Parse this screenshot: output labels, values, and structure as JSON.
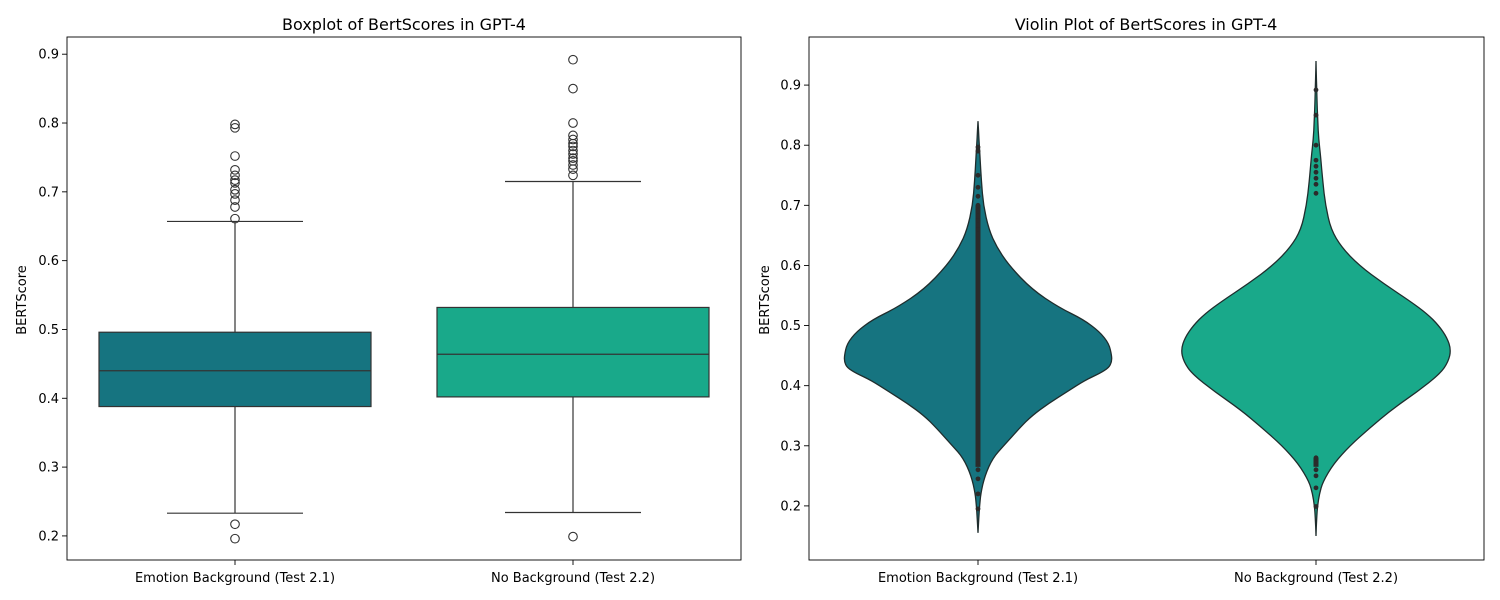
{
  "chart_data": [
    {
      "type": "boxplot",
      "title": "Boxplot of BertScores in GPT-4",
      "xlabel": "",
      "ylabel": "BERTScore",
      "ylim": [
        0.165,
        0.925
      ],
      "yticks": [
        "0.2",
        "0.3",
        "0.4",
        "0.5",
        "0.6",
        "0.7",
        "0.8",
        "0.9"
      ],
      "categories": [
        "Emotion Background (Test 2.1)",
        "No Background (Test 2.2)"
      ],
      "series": [
        {
          "category": "Emotion Background (Test 2.1)",
          "color": "#167480",
          "q1": 0.388,
          "median": 0.44,
          "q3": 0.496,
          "whisker_low": 0.233,
          "whisker_high": 0.657,
          "outliers": [
            0.196,
            0.217,
            0.661,
            0.678,
            0.688,
            0.697,
            0.703,
            0.713,
            0.717,
            0.724,
            0.732,
            0.752,
            0.793,
            0.798
          ]
        },
        {
          "category": "No Background (Test 2.2)",
          "color": "#19a98a",
          "q1": 0.402,
          "median": 0.464,
          "q3": 0.532,
          "whisker_low": 0.234,
          "whisker_high": 0.715,
          "outliers": [
            0.199,
            0.724,
            0.733,
            0.739,
            0.745,
            0.749,
            0.755,
            0.76,
            0.766,
            0.77,
            0.776,
            0.782,
            0.8,
            0.85,
            0.892
          ]
        }
      ]
    },
    {
      "type": "violin",
      "title": "Violin Plot of BertScores in GPT-4",
      "xlabel": "",
      "ylabel": "BERTScore",
      "ylim": [
        0.11,
        0.98
      ],
      "yticks": [
        "0.2",
        "0.3",
        "0.4",
        "0.5",
        "0.6",
        "0.7",
        "0.8",
        "0.9"
      ],
      "categories": [
        "Emotion Background (Test 2.1)",
        "No Background (Test 2.2)"
      ],
      "series": [
        {
          "category": "Emotion Background (Test 2.1)",
          "color": "#167480",
          "density_y": [
            0.155,
            0.18,
            0.2,
            0.22,
            0.25,
            0.28,
            0.3,
            0.33,
            0.35,
            0.37,
            0.39,
            0.41,
            0.42,
            0.43,
            0.44,
            0.45,
            0.47,
            0.49,
            0.51,
            0.53,
            0.56,
            0.6,
            0.63,
            0.66,
            0.7,
            0.74,
            0.78,
            0.81,
            0.84
          ],
          "density_w": [
            0.0,
            0.006,
            0.012,
            0.02,
            0.05,
            0.11,
            0.19,
            0.31,
            0.4,
            0.52,
            0.66,
            0.8,
            0.9,
            0.97,
            0.99,
            0.99,
            0.97,
            0.9,
            0.78,
            0.6,
            0.4,
            0.23,
            0.14,
            0.08,
            0.04,
            0.025,
            0.015,
            0.007,
            0.0
          ],
          "points": [
            0.195,
            0.22,
            0.245,
            0.26,
            0.27,
            0.66,
            0.675,
            0.69,
            0.7,
            0.715,
            0.73,
            0.75,
            0.79,
            0.797
          ]
        },
        {
          "category": "No Background (Test 2.2)",
          "color": "#19a98a",
          "density_y": [
            0.15,
            0.18,
            0.2,
            0.22,
            0.24,
            0.27,
            0.3,
            0.33,
            0.36,
            0.39,
            0.42,
            0.44,
            0.46,
            0.48,
            0.5,
            0.52,
            0.54,
            0.57,
            0.6,
            0.63,
            0.66,
            0.7,
            0.74,
            0.78,
            0.81,
            0.84,
            0.88,
            0.91,
            0.94
          ],
          "density_w": [
            0.0,
            0.005,
            0.012,
            0.025,
            0.05,
            0.13,
            0.25,
            0.4,
            0.56,
            0.75,
            0.92,
            0.98,
            1.0,
            0.97,
            0.91,
            0.82,
            0.7,
            0.5,
            0.32,
            0.19,
            0.11,
            0.07,
            0.05,
            0.035,
            0.02,
            0.013,
            0.007,
            0.003,
            0.0
          ],
          "points": [
            0.199,
            0.23,
            0.25,
            0.26,
            0.28,
            0.72,
            0.735,
            0.745,
            0.755,
            0.765,
            0.775,
            0.8,
            0.85,
            0.892
          ]
        }
      ]
    }
  ]
}
